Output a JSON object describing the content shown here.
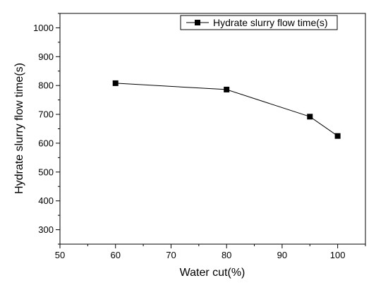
{
  "chart_data": {
    "type": "line",
    "xlabel": "Water cut(%)",
    "ylabel": "Hydrate slurry flow time(s)",
    "xlim": [
      50,
      105
    ],
    "ylim": [
      250,
      1050
    ],
    "xticks": [
      50,
      60,
      70,
      80,
      90,
      100
    ],
    "yticks": [
      300,
      400,
      500,
      600,
      700,
      800,
      900,
      1000
    ],
    "grid": false,
    "legend_position": "top-right",
    "series": [
      {
        "name": "Hydrate slurry flow time(s)",
        "marker": "square",
        "color": "#000000",
        "x": [
          60,
          80,
          95,
          100
        ],
        "y": [
          808,
          786,
          692,
          625
        ]
      }
    ]
  }
}
